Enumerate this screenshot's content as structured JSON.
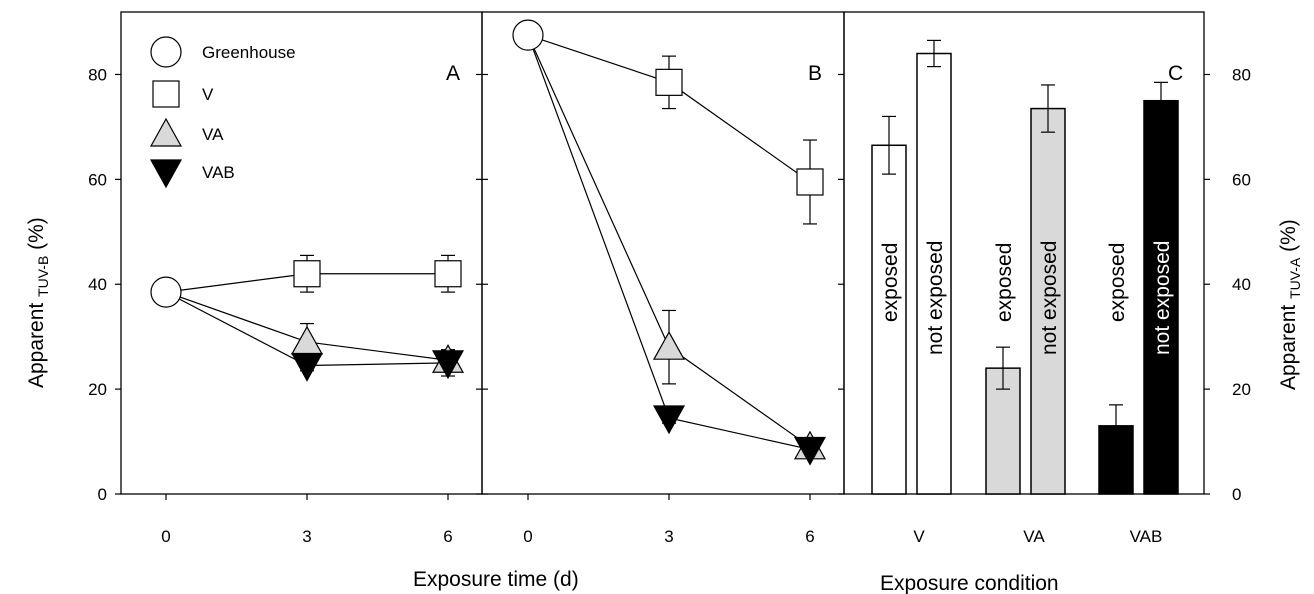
{
  "figure": {
    "left_ylabel": "Apparent TUV-B (%)",
    "left_ylabel_main": "Apparent ",
    "left_ylabel_sub": "TUV-B",
    "left_ylabel_suffix": " (%)",
    "right_ylabel": "Apparent TUV-A (%)",
    "right_ylabel_main": "Apparent ",
    "right_ylabel_sub": "TUV-A",
    "right_ylabel_suffix": " (%)",
    "xlabel_time": "Exposure time (d)",
    "xlabel_condition": "Exposure condition",
    "legend": [
      {
        "name": "Greenhouse",
        "marker": "circle",
        "fill": "#ffffff"
      },
      {
        "name": "V",
        "marker": "square",
        "fill": "#ffffff"
      },
      {
        "name": "VA",
        "marker": "triangle-up",
        "fill": "#d9d9d9"
      },
      {
        "name": "VAB",
        "marker": "triangle-down",
        "fill": "#000000"
      }
    ]
  },
  "chart_data": [
    {
      "panel": "A",
      "type": "line",
      "x": [
        0,
        3,
        6
      ],
      "xticks": [
        "0",
        "3",
        "6"
      ],
      "ylim": [
        0,
        90
      ],
      "yticks": [
        0,
        20,
        40,
        60,
        80
      ],
      "series": [
        {
          "name": "Greenhouse",
          "marker": "circle",
          "fill": "#ffffff",
          "points": [
            [
              0,
              38.5
            ]
          ]
        },
        {
          "name": "V",
          "marker": "square",
          "fill": "#ffffff",
          "points": [
            [
              3,
              42
            ],
            [
              6,
              42
            ]
          ],
          "errors": [
            3.5,
            3.5
          ],
          "connect_from_origin": true
        },
        {
          "name": "VA",
          "marker": "triangle-up",
          "fill": "#d9d9d9",
          "points": [
            [
              3,
              29
            ],
            [
              6,
              25.5
            ]
          ],
          "errors": [
            3.5,
            2
          ],
          "connect_from_origin": true
        },
        {
          "name": "VAB",
          "marker": "triangle-down",
          "fill": "#000000",
          "points": [
            [
              3,
              24.5
            ],
            [
              6,
              25
            ]
          ],
          "errors": [
            1,
            2.5
          ],
          "connect_from_origin": true
        }
      ]
    },
    {
      "panel": "B",
      "type": "line",
      "x": [
        0,
        3,
        6
      ],
      "xticks": [
        "0",
        "3",
        "6"
      ],
      "ylim": [
        0,
        90
      ],
      "yticks": [
        0,
        20,
        40,
        60,
        80
      ],
      "series": [
        {
          "name": "Greenhouse",
          "marker": "circle",
          "fill": "#ffffff",
          "points": [
            [
              0,
              87.5
            ]
          ]
        },
        {
          "name": "V",
          "marker": "square",
          "fill": "#ffffff",
          "points": [
            [
              3,
              78.5
            ],
            [
              6,
              59.5
            ]
          ],
          "errors": [
            5,
            8
          ],
          "connect_from_origin": true
        },
        {
          "name": "VA",
          "marker": "triangle-up",
          "fill": "#d9d9d9",
          "points": [
            [
              3,
              28
            ],
            [
              6,
              9
            ]
          ],
          "errors": [
            7,
            1
          ],
          "connect_from_origin": true
        },
        {
          "name": "VAB",
          "marker": "triangle-down",
          "fill": "#000000",
          "points": [
            [
              3,
              14.5
            ],
            [
              6,
              8.5
            ]
          ],
          "errors": [
            1,
            1
          ],
          "connect_from_origin": true
        }
      ]
    },
    {
      "panel": "C",
      "type": "bar",
      "categories": [
        "V",
        "VA",
        "VAB"
      ],
      "ylim": [
        0,
        90
      ],
      "yticks": [
        0,
        20,
        40,
        60,
        80
      ],
      "bars": [
        {
          "group": "V",
          "label": "exposed",
          "value": 66.5,
          "error": 5.5,
          "fill": "#ffffff",
          "text_color": "#000000"
        },
        {
          "group": "V",
          "label": "not exposed",
          "value": 84,
          "error": 2.5,
          "fill": "#ffffff",
          "text_color": "#000000"
        },
        {
          "group": "VA",
          "label": "exposed",
          "value": 24,
          "error": 4,
          "fill": "#d9d9d9",
          "text_color": "#000000"
        },
        {
          "group": "VA",
          "label": "not exposed",
          "value": 73.5,
          "error": 4.5,
          "fill": "#d9d9d9",
          "text_color": "#000000"
        },
        {
          "group": "VAB",
          "label": "exposed",
          "value": 13,
          "error": 4,
          "fill": "#000000",
          "text_color": "#000000"
        },
        {
          "group": "VAB",
          "label": "not exposed",
          "value": 75,
          "error": 3.5,
          "fill": "#000000",
          "text_color": "#ffffff"
        }
      ]
    }
  ]
}
